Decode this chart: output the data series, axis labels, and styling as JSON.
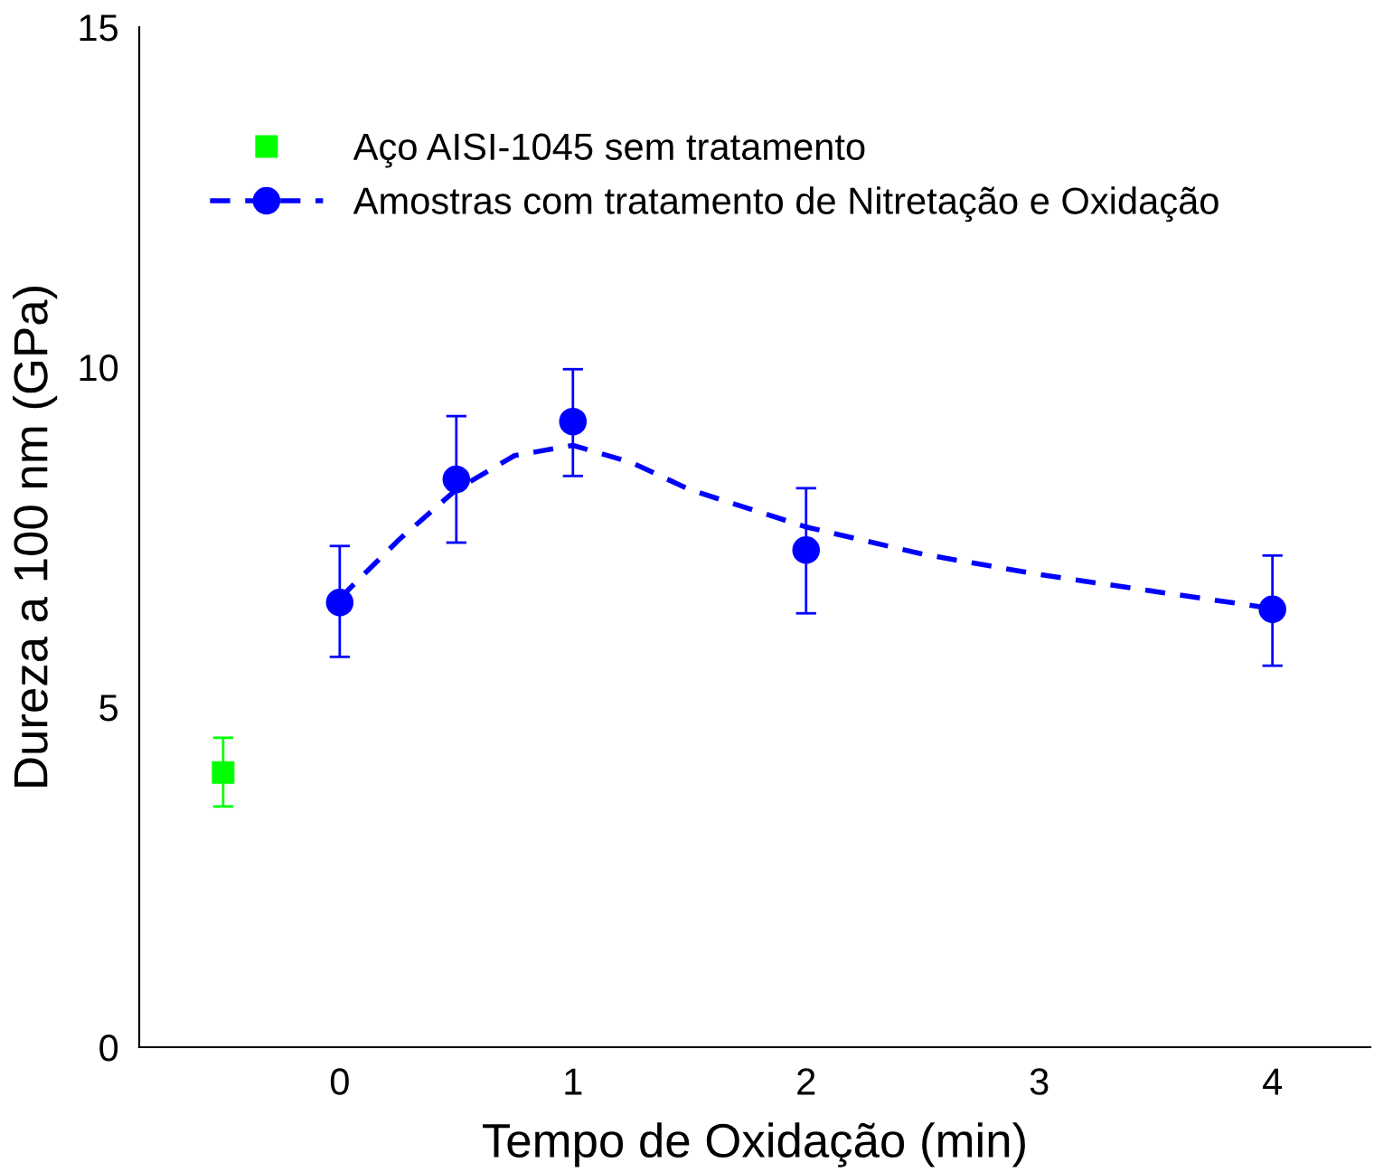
{
  "chart_data": {
    "type": "scatter",
    "xlabel": "Tempo de Oxidação (min)",
    "ylabel": "Dureza a 100 nm (GPa)",
    "xlim": [
      -0.86,
      4.42
    ],
    "xticks": [
      0,
      1,
      2,
      3,
      4
    ],
    "ylim": [
      0,
      15
    ],
    "yticks": [
      0,
      5,
      10,
      15
    ],
    "grid": false,
    "legend": "top left",
    "series": [
      {
        "name": "Aço AISI-1045 sem tratamento",
        "marker": "square",
        "color": "#00ff00",
        "x": [
          -0.5
        ],
        "values": [
          4.04
        ],
        "errors": [
          [
            3.54,
            4.55
          ]
        ]
      },
      {
        "name": "Amostras com tratamento de Nitretação e Oxidação",
        "marker": "circle",
        "color": "#0000ff",
        "x": [
          0,
          0.5,
          1,
          2,
          4
        ],
        "values": [
          6.54,
          8.35,
          9.2,
          7.31,
          6.44
        ],
        "errors": [
          [
            5.74,
            7.37
          ],
          [
            7.42,
            9.28
          ],
          [
            8.4,
            9.97
          ],
          [
            6.38,
            8.22
          ],
          [
            5.61,
            7.23
          ]
        ]
      },
      {
        "type": "line",
        "line_style": "dashed",
        "color": "#0000ff",
        "x": [
          0,
          0.25,
          0.5,
          0.75,
          1,
          1.25,
          1.5,
          2,
          2.5,
          3,
          3.5,
          4
        ],
        "values": [
          6.6,
          7.45,
          8.2,
          8.7,
          8.85,
          8.6,
          8.2,
          7.65,
          7.25,
          6.95,
          6.7,
          6.45
        ]
      }
    ]
  }
}
